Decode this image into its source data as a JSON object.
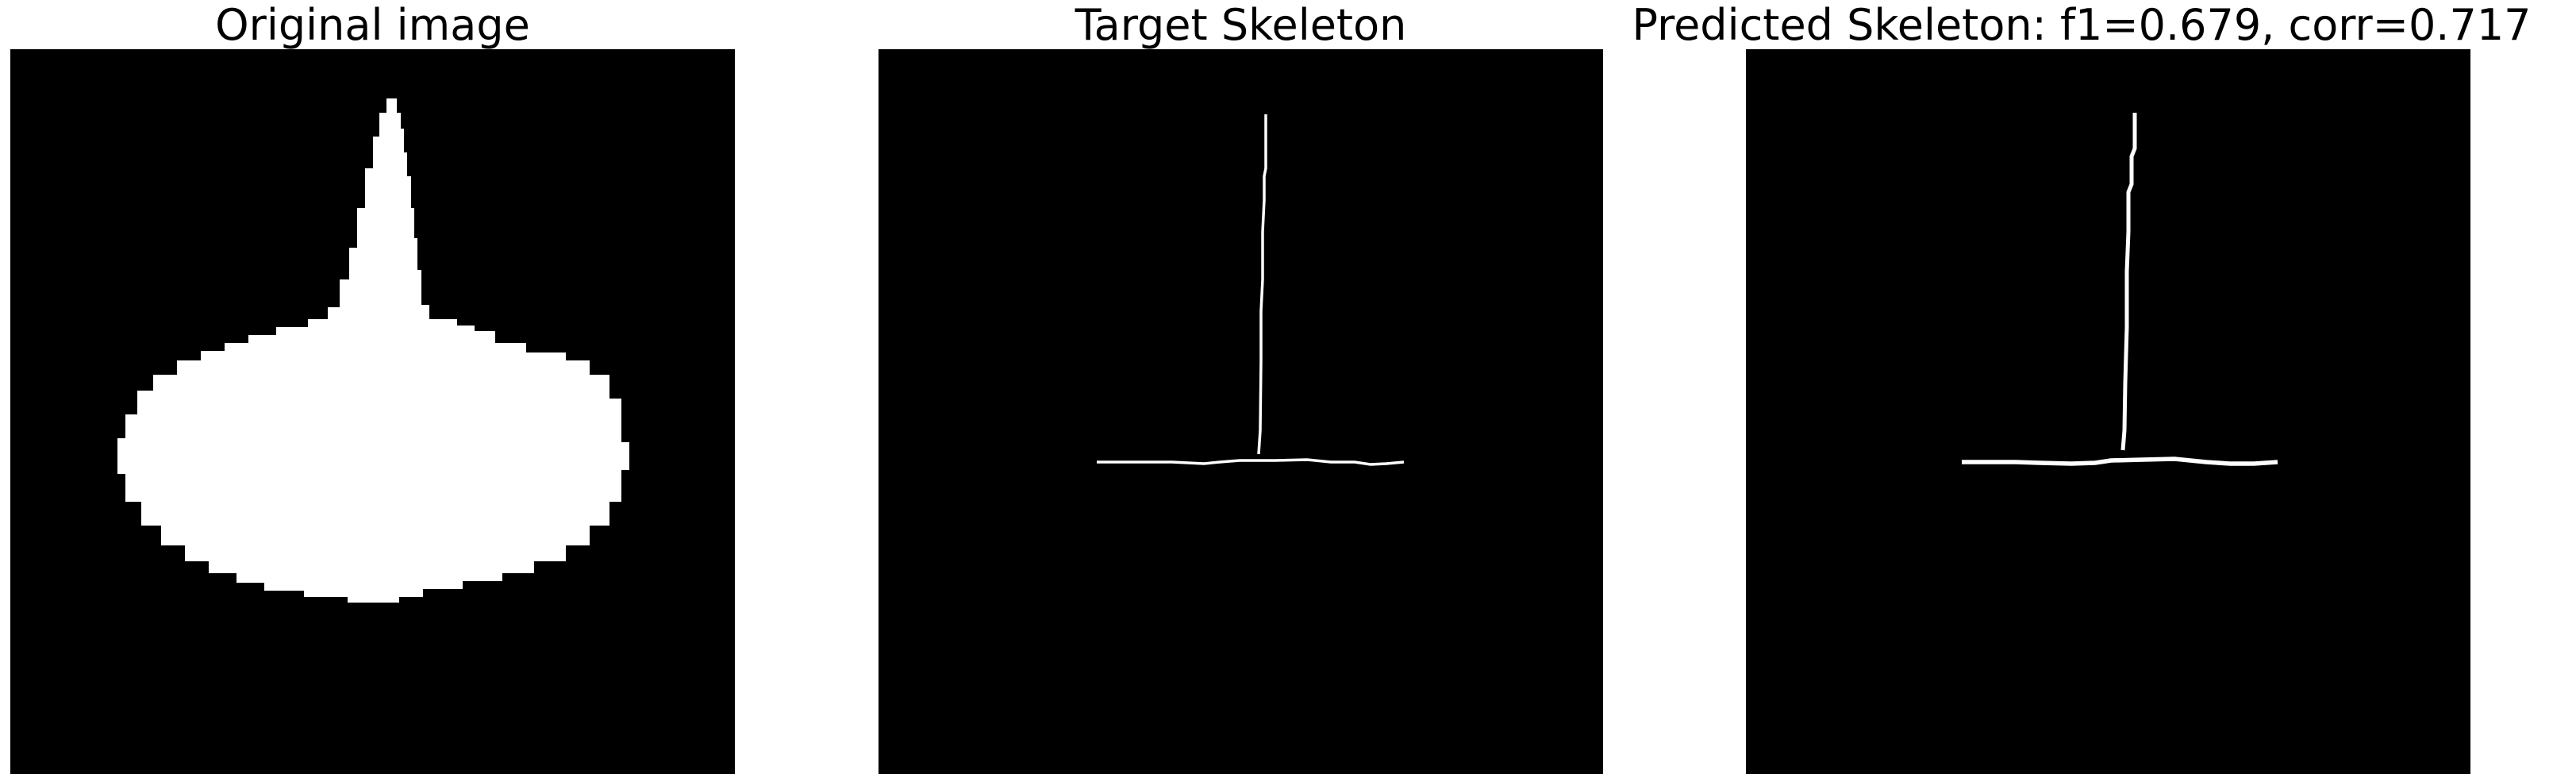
{
  "panels": {
    "original": {
      "title": "Original image"
    },
    "target": {
      "title": "Target Skeleton"
    },
    "predicted": {
      "title": "Predicted Skeleton: f1=0.679, corr=0.717"
    }
  },
  "colors": {
    "background": "#000000",
    "foreground": "#ffffff",
    "page": "#ffffff"
  }
}
